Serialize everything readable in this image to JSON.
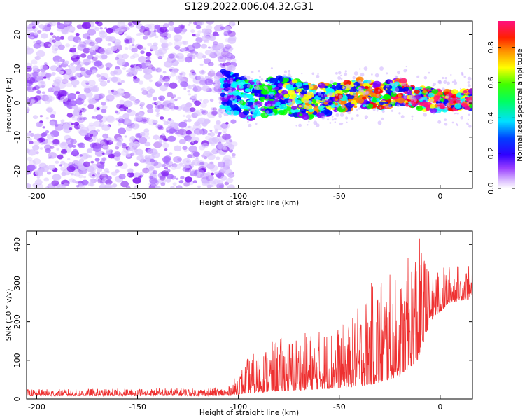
{
  "title": "S129.2022.006.04.32.G31",
  "colors": {
    "snr_line": "#ee3030",
    "scatter_base": "#8a2be2"
  },
  "chart_data": [
    {
      "type": "heatmap",
      "xlabel": "Height of straight line (km)",
      "ylabel": "Frequency (Hz)",
      "xlim": [
        -205,
        16
      ],
      "ylim": [
        -25,
        24
      ],
      "x_ticks": [
        -200,
        -150,
        -100,
        -50,
        0
      ],
      "y_ticks": [
        -20,
        -10,
        0,
        10,
        20
      ],
      "colorbar": {
        "label": "Normalized spectral amplitude",
        "range": [
          0,
          0.95
        ],
        "ticks": [
          0.0,
          0.2,
          0.4,
          0.6,
          0.8
        ],
        "colormap": [
          "#f0f0f0",
          "#c8a0ff",
          "#8000ff",
          "#0000ff",
          "#00ffff",
          "#00ff00",
          "#ffff00",
          "#ff8000",
          "#ff0000",
          "#ff1080"
        ]
      },
      "ridge": [
        {
          "x": -105,
          "y": 3.5
        },
        {
          "x": -95,
          "y": 1.0
        },
        {
          "x": -80,
          "y": 2.5
        },
        {
          "x": -65,
          "y": 0.5
        },
        {
          "x": -50,
          "y": 1.5
        },
        {
          "x": -40,
          "y": 3.0
        },
        {
          "x": -30,
          "y": 2.0
        },
        {
          "x": -20,
          "y": 3.5
        },
        {
          "x": -10,
          "y": 1.5
        },
        {
          "x": 0,
          "y": 0.5
        },
        {
          "x": 8,
          "y": 1.0
        },
        {
          "x": 16,
          "y": 1.0
        }
      ]
    },
    {
      "type": "line",
      "xlabel": "Height of straight line (km)",
      "ylabel": "SNR (10 * v/v)",
      "xlim": [
        -205,
        16
      ],
      "ylim": [
        0,
        435
      ],
      "x_ticks": [
        -200,
        -150,
        -100,
        -50,
        0
      ],
      "y_ticks": [
        0,
        100,
        200,
        300,
        400
      ],
      "series": [
        {
          "envelope": [
            {
              "x": -205,
              "base": 8,
              "peak": 25
            },
            {
              "x": -105,
              "base": 8,
              "peak": 30
            },
            {
              "x": -95,
              "base": 15,
              "peak": 110
            },
            {
              "x": -80,
              "base": 20,
              "peak": 160
            },
            {
              "x": -60,
              "base": 25,
              "peak": 180
            },
            {
              "x": -45,
              "base": 30,
              "peak": 200
            },
            {
              "x": -30,
              "base": 40,
              "peak": 340
            },
            {
              "x": -20,
              "base": 60,
              "peak": 310
            },
            {
              "x": -11,
              "base": 100,
              "peak": 435
            },
            {
              "x": -5,
              "base": 200,
              "peak": 330
            },
            {
              "x": 5,
              "base": 250,
              "peak": 350
            },
            {
              "x": 16,
              "base": 260,
              "peak": 345
            }
          ]
        }
      ]
    }
  ]
}
